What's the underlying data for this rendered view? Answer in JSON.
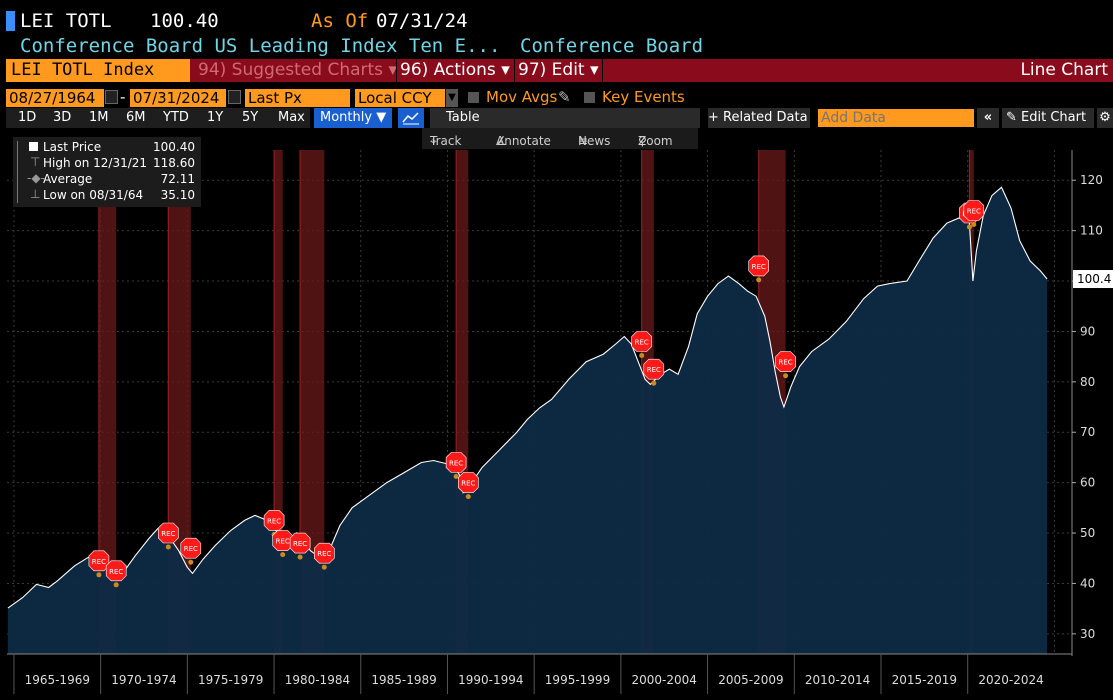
{
  "header": {
    "ticker": "LEI TOTL",
    "last_value": "100.40",
    "as_of_label": "As Of",
    "as_of_date": "07/31/24",
    "description": "Conference Board US Leading Index Ten E...",
    "source": "Conference Board"
  },
  "menubar": {
    "security": "LEI TOTL Index",
    "suggested_charts": "94) Suggested Charts",
    "actions": "96) Actions",
    "edit": "97) Edit",
    "chart_type": "Line Chart"
  },
  "controls": {
    "start_date": "08/27/1964",
    "end_date": "07/31/2024",
    "field": "Last Px",
    "currency": "Local CCY",
    "mov_avgs": "Mov Avgs",
    "key_events": "Key Events"
  },
  "ranges": [
    "1D",
    "3D",
    "1M",
    "6M",
    "YTD",
    "1Y",
    "5Y",
    "Max"
  ],
  "toolbar": {
    "frequency": "Monthly",
    "table": "Table",
    "related_data": "Related Data",
    "add_data_placeholder": "Add Data",
    "edit_chart": "Edit Chart"
  },
  "tools": {
    "track": "Track",
    "annotate": "Annotate",
    "news": "News",
    "zoom": "Zoom"
  },
  "legend": {
    "last_label": "Last Price",
    "last_value": "100.40",
    "high_label": "High on 12/31/21",
    "high_value": "118.60",
    "avg_label": "Average",
    "avg_value": "72.11",
    "low_label": "Low on 08/31/64",
    "low_value": "35.10"
  },
  "chart_data": {
    "type": "area",
    "ylim": [
      26,
      126
    ],
    "yticks": [
      30,
      40,
      50,
      60,
      70,
      80,
      90,
      100,
      110,
      120
    ],
    "last_value_label": "100.4",
    "x_labels": [
      "1965-1969",
      "1970-1974",
      "1975-1979",
      "1980-1984",
      "1985-1989",
      "1990-1994",
      "1995-1999",
      "2000-2004",
      "2005-2009",
      "2010-2014",
      "2015-2019",
      "2020-2024"
    ],
    "xlim": [
      1964.6,
      2025.9
    ],
    "series": [
      {
        "x": [
          1964.65,
          1965.5,
          1966.3,
          1967.0,
          1967.5,
          1968.5,
          1969.3,
          1969.9,
          1970.4,
          1970.9,
          1971.3,
          1972.0,
          1972.8,
          1973.3,
          1973.9,
          1974.5,
          1975.0,
          1975.3,
          1975.9,
          1976.6,
          1977.5,
          1978.3,
          1978.9,
          1979.4,
          1979.9,
          1980.3,
          1980.6,
          1980.9,
          1981.3,
          1981.7,
          1982.1,
          1982.5,
          1982.9,
          1983.3,
          1983.8,
          1984.5,
          1985.5,
          1986.5,
          1987.5,
          1988.5,
          1989.2,
          1989.9,
          1990.3,
          1990.7,
          1990.9,
          1991.3,
          1992.0,
          1993.0,
          1994.0,
          1994.6,
          1995.3,
          1996.0,
          1997.0,
          1998.0,
          1999.0,
          1999.7,
          2000.2,
          2000.6,
          2001.0,
          2001.4,
          2001.7,
          2002.3,
          2002.8,
          2003.3,
          2003.9,
          2004.4,
          2005.0,
          2005.6,
          2006.2,
          2006.8,
          2007.3,
          2007.8,
          2008.3,
          2008.6,
          2008.9,
          2009.2,
          2009.4,
          2009.8,
          2010.3,
          2011.0,
          2012.0,
          2013.0,
          2014.0,
          2014.8,
          2015.5,
          2016.5,
          2017.2,
          2018.0,
          2018.8,
          2019.5,
          2019.9,
          2020.1,
          2020.3,
          2020.5,
          2020.9,
          2021.4,
          2021.95,
          2022.5,
          2023.0,
          2023.6,
          2024.2,
          2024.58
        ],
        "y": [
          35.1,
          37.2,
          39.8,
          39.2,
          40.5,
          43.5,
          45.2,
          44.2,
          43.0,
          41.8,
          42.2,
          45.5,
          49.0,
          50.9,
          49.5,
          46.5,
          43.2,
          42.0,
          44.8,
          47.5,
          50.5,
          52.5,
          53.5,
          52.8,
          51.5,
          49.5,
          47.0,
          48.5,
          50.0,
          48.5,
          46.5,
          45.5,
          44.8,
          47.5,
          51.5,
          55.0,
          57.5,
          60.0,
          62.0,
          64.0,
          64.4,
          63.8,
          63.5,
          61.5,
          58.0,
          59.5,
          63.0,
          66.5,
          70.0,
          72.5,
          74.8,
          76.5,
          80.5,
          84.0,
          85.5,
          87.5,
          89.0,
          87.5,
          84.0,
          80.5,
          79.5,
          81.5,
          82.5,
          81.5,
          87.0,
          93.5,
          97.0,
          99.5,
          101.0,
          99.5,
          98.0,
          97.0,
          93.0,
          88.0,
          82.0,
          77.0,
          75.0,
          79.0,
          83.0,
          86.0,
          88.5,
          92.0,
          96.5,
          99.0,
          99.5,
          100.0,
          104.0,
          108.5,
          111.5,
          112.5,
          112.0,
          111.5,
          100.0,
          106.0,
          113.0,
          117.0,
          118.6,
          114.5,
          108.0,
          104.0,
          102.0,
          100.4
        ]
      }
    ],
    "recession_bands": [
      [
        1969.9,
        1970.9
      ],
      [
        1973.9,
        1975.2
      ],
      [
        1980.0,
        1980.5
      ],
      [
        1981.5,
        1982.9
      ],
      [
        1990.5,
        1991.2
      ],
      [
        2001.2,
        2001.9
      ],
      [
        2007.95,
        2009.5
      ],
      [
        2020.1,
        2020.35
      ]
    ],
    "rec_marker_label": "REC",
    "rec_markers": [
      [
        1969.9,
        44.5
      ],
      [
        1970.9,
        42.5
      ],
      [
        1973.9,
        50.0
      ],
      [
        1975.2,
        47.0
      ],
      [
        1980.0,
        52.5
      ],
      [
        1980.5,
        48.5
      ],
      [
        1981.5,
        48.0
      ],
      [
        1982.9,
        46.0
      ],
      [
        1990.5,
        64.0
      ],
      [
        1991.2,
        60.0
      ],
      [
        2001.2,
        88.0
      ],
      [
        2001.9,
        82.5
      ],
      [
        2007.95,
        103.0
      ],
      [
        2009.5,
        84.0
      ],
      [
        2020.1,
        113.5
      ],
      [
        2020.35,
        114.0
      ]
    ]
  },
  "colors": {
    "accent_orange": "#ff9a1e",
    "menubar_red": "#8a0c1c",
    "cyan_text": "#6fd6e8",
    "area_fill": "#0e2a45",
    "recession_band": "#6b1a1a",
    "rec_marker": "#ff1a1a",
    "active_blue": "#1a5fcf"
  }
}
